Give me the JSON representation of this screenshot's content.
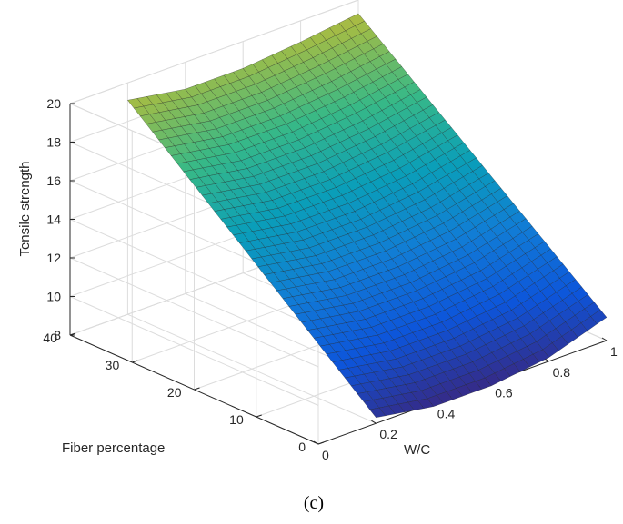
{
  "chart_data": {
    "type": "surface",
    "title": "",
    "xlabel": "W/C",
    "ylabel": "Fiber percentage",
    "zlabel": "Tensile strength",
    "xlim": [
      0,
      1
    ],
    "ylim": [
      0,
      40
    ],
    "zlim": [
      8,
      20
    ],
    "x_ticks": [
      "0",
      "0.2",
      "0.4",
      "0.6",
      "0.8",
      "1"
    ],
    "y_ticks": [
      "0",
      "10",
      "20",
      "30",
      "40"
    ],
    "z_ticks": [
      "8",
      "10",
      "12",
      "14",
      "16",
      "18",
      "20"
    ],
    "grid": true,
    "colormap": "parula",
    "surface_corners": {
      "x_range": [
        0.2,
        1.0
      ],
      "y_range": [
        0,
        40
      ],
      "z_at_x02_y0": 8.3,
      "z_at_x1_y0": 9.2,
      "z_at_x02_y40": 19.1,
      "z_at_x1_y40": 19.3
    },
    "edge_profiles": {
      "x": [
        0.2,
        0.4,
        0.6,
        0.8,
        1.0
      ],
      "z_at_y0": [
        8.3,
        7.8,
        7.8,
        8.2,
        9.2
      ],
      "z_at_y40": [
        19.1,
        18.6,
        18.6,
        18.9,
        19.3
      ]
    }
  },
  "caption": "(c)"
}
